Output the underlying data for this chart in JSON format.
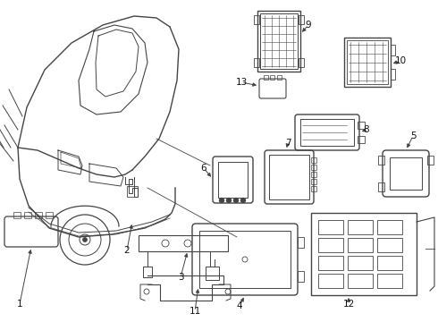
{
  "bg_color": "#ffffff",
  "line_color": "#444444",
  "label_color": "#111111",
  "fig_width": 4.9,
  "fig_height": 3.6,
  "dpi": 100
}
